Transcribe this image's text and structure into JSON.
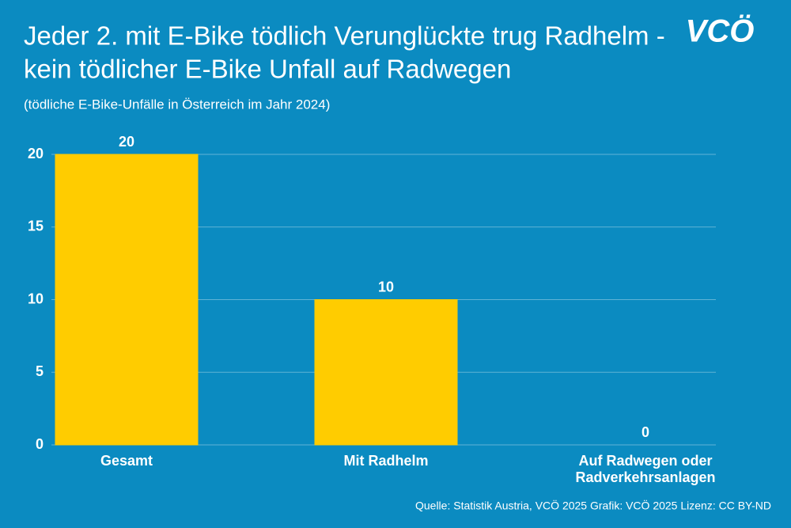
{
  "chart_data": {
    "type": "bar",
    "title": [
      "Jeder 2. mit E-Bike tödlich Verunglückte trug Radhelm -",
      "kein tödlicher E-Bike Unfall auf Radwegen"
    ],
    "subtitle": "(tödliche E-Bike-Unfälle in Österreich im Jahr 2024)",
    "logo": "VCÖ",
    "source": "Quelle: Statistik Austria, VCÖ 2025 Grafik: VCÖ 2025 Lizenz: CC BY-ND",
    "categories": [
      "Gesamt",
      "Mit Radhelm",
      "Auf Radwegen oder Radverkehrsanlagen"
    ],
    "values": [
      20,
      10,
      0
    ],
    "color": "#ffcc00",
    "ylim": [
      0,
      20
    ],
    "yticks": [
      0,
      5,
      10,
      15,
      20
    ],
    "grid": true
  }
}
